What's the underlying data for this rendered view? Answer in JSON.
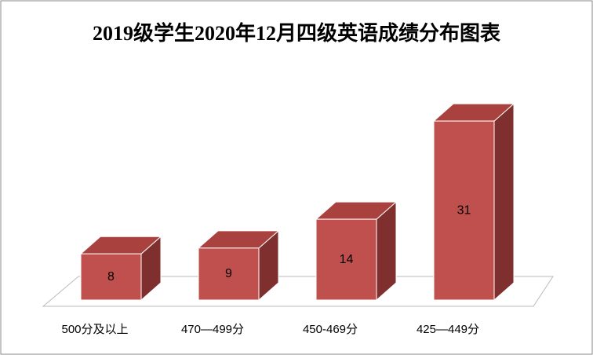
{
  "chart_data": {
    "type": "bar3d",
    "title": "2019级学生2020年12月四级英语成绩分布图表",
    "categories": [
      "500分及以上",
      "470—499分",
      "450-469分",
      "425—449分"
    ],
    "values": [
      8,
      9,
      14,
      31
    ],
    "color": "#c0504d"
  }
}
